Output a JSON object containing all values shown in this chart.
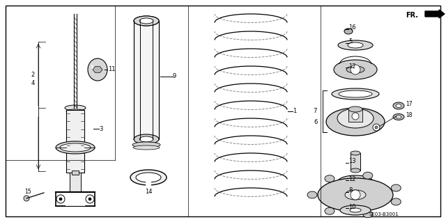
{
  "bg_color": "#ffffff",
  "line_color": "#000000",
  "fig_width": 6.4,
  "fig_height": 3.19,
  "dpi": 100,
  "diagram_code": "SE03-B3001"
}
